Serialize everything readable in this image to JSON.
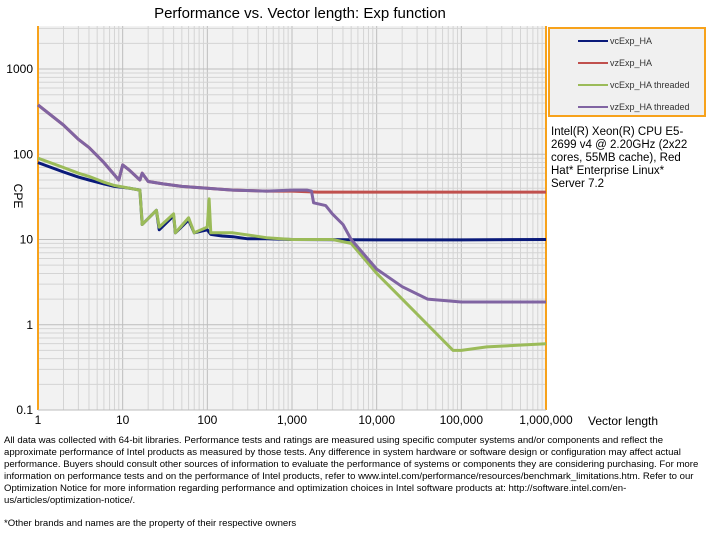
{
  "chart_data": {
    "type": "line",
    "title": "Performance vs. Vector length: Exp function",
    "xlabel": "Vector length",
    "ylabel": "CPE",
    "xscale": "log",
    "yscale": "log",
    "xlim": [
      1,
      1000000
    ],
    "ylim": [
      0.1,
      3200
    ],
    "xticks": [
      {
        "v": 1,
        "label": "1"
      },
      {
        "v": 10,
        "label": "10"
      },
      {
        "v": 100,
        "label": "100"
      },
      {
        "v": 1000,
        "label": "1,000"
      },
      {
        "v": 10000,
        "label": "10,000"
      },
      {
        "v": 100000,
        "label": "100,000"
      },
      {
        "v": 1000000,
        "label": "1,000,000"
      }
    ],
    "yticks": [
      {
        "v": 0.1,
        "label": "0.1"
      },
      {
        "v": 1,
        "label": "1"
      },
      {
        "v": 10,
        "label": "10"
      },
      {
        "v": 100,
        "label": "100"
      },
      {
        "v": 1000,
        "label": "1000"
      }
    ],
    "grid": true,
    "legend_position": "top-right",
    "series": [
      {
        "name": "vcExp_HA",
        "color": "#0a1a7a",
        "points": [
          [
            1,
            80
          ],
          [
            2,
            62
          ],
          [
            3,
            54
          ],
          [
            4,
            50
          ],
          [
            6,
            45
          ],
          [
            8,
            42
          ],
          [
            12,
            40
          ],
          [
            16,
            38
          ],
          [
            17,
            15
          ],
          [
            25,
            22
          ],
          [
            27,
            13
          ],
          [
            40,
            19
          ],
          [
            42,
            12
          ],
          [
            60,
            17
          ],
          [
            70,
            12
          ],
          [
            100,
            13
          ],
          [
            110,
            11.5
          ],
          [
            150,
            11
          ],
          [
            200,
            10.8
          ],
          [
            300,
            10.2
          ],
          [
            500,
            10.2
          ],
          [
            1000,
            10
          ],
          [
            10000,
            9.9
          ],
          [
            100000,
            9.9
          ],
          [
            1000000,
            10
          ]
        ]
      },
      {
        "name": "vzExp_HA",
        "color": "#c0504d",
        "points": [
          [
            1,
            380
          ],
          [
            2,
            220
          ],
          [
            3,
            150
          ],
          [
            4,
            120
          ],
          [
            6,
            80
          ],
          [
            9,
            50
          ],
          [
            10,
            75
          ],
          [
            12,
            65
          ],
          [
            16,
            50
          ],
          [
            17,
            60
          ],
          [
            20,
            48
          ],
          [
            30,
            45
          ],
          [
            50,
            42
          ],
          [
            100,
            40
          ],
          [
            200,
            38
          ],
          [
            500,
            37
          ],
          [
            1000,
            37
          ],
          [
            2000,
            36
          ],
          [
            10000,
            36
          ],
          [
            100000,
            36
          ],
          [
            1000000,
            36
          ]
        ]
      },
      {
        "name": "vcExp_HA threaded",
        "color": "#9bbb59",
        "points": [
          [
            1,
            90
          ],
          [
            2,
            70
          ],
          [
            3,
            60
          ],
          [
            4,
            55
          ],
          [
            6,
            47
          ],
          [
            8,
            43
          ],
          [
            12,
            40
          ],
          [
            16,
            38
          ],
          [
            17,
            15
          ],
          [
            25,
            22
          ],
          [
            27,
            14
          ],
          [
            40,
            20
          ],
          [
            42,
            12
          ],
          [
            60,
            18
          ],
          [
            70,
            12
          ],
          [
            100,
            14
          ],
          [
            105,
            30
          ],
          [
            110,
            12
          ],
          [
            200,
            12
          ],
          [
            500,
            10.5
          ],
          [
            1000,
            10
          ],
          [
            3000,
            10
          ],
          [
            5000,
            9
          ],
          [
            10000,
            4
          ],
          [
            20000,
            2
          ],
          [
            50000,
            0.8
          ],
          [
            80000,
            0.5
          ],
          [
            100000,
            0.5
          ],
          [
            200000,
            0.55
          ],
          [
            1000000,
            0.6
          ]
        ]
      },
      {
        "name": "vzExp_HA threaded",
        "color": "#8064a2",
        "points": [
          [
            1,
            380
          ],
          [
            2,
            220
          ],
          [
            3,
            150
          ],
          [
            4,
            120
          ],
          [
            6,
            80
          ],
          [
            9,
            50
          ],
          [
            10,
            75
          ],
          [
            12,
            65
          ],
          [
            16,
            50
          ],
          [
            17,
            60
          ],
          [
            20,
            48
          ],
          [
            30,
            45
          ],
          [
            50,
            42
          ],
          [
            100,
            40
          ],
          [
            200,
            38
          ],
          [
            500,
            37
          ],
          [
            1000,
            38
          ],
          [
            1500,
            38
          ],
          [
            1700,
            37
          ],
          [
            1800,
            27
          ],
          [
            2500,
            25
          ],
          [
            3000,
            20
          ],
          [
            4000,
            15
          ],
          [
            5000,
            10
          ],
          [
            10000,
            4.5
          ],
          [
            20000,
            2.8
          ],
          [
            40000,
            2
          ],
          [
            100000,
            1.85
          ],
          [
            1000000,
            1.85
          ]
        ]
      }
    ]
  },
  "system_info": "Intel(R) Xeon(R) CPU E5-2699 v4 @ 2.20GHz (2x22 cores, 55MB cache), Red Hat* Enterprise Linux* Server 7.2",
  "footnote": "All data was collected with 64-bit libraries. Performance tests and ratings are measured using specific computer systems and/or components and reflect the approximate performance of Intel products as measured by those tests. Any difference in system hardware or software design or configuration may affect actual performance. Buyers should consult other sources of information to evaluate the performance of systems or components they are considering purchasing. For more information on performance tests and on the performance of Intel products, refer to www.intel.com/performance/resources/benchmark_limitations.htm. Refer to our Optimization Notice for more information regarding performance and optimization choices in Intel software products at: http://software.intel.com/en-us/articles/optimization-notice/.",
  "trademark": "*Other brands and names are the property of their respective owners"
}
